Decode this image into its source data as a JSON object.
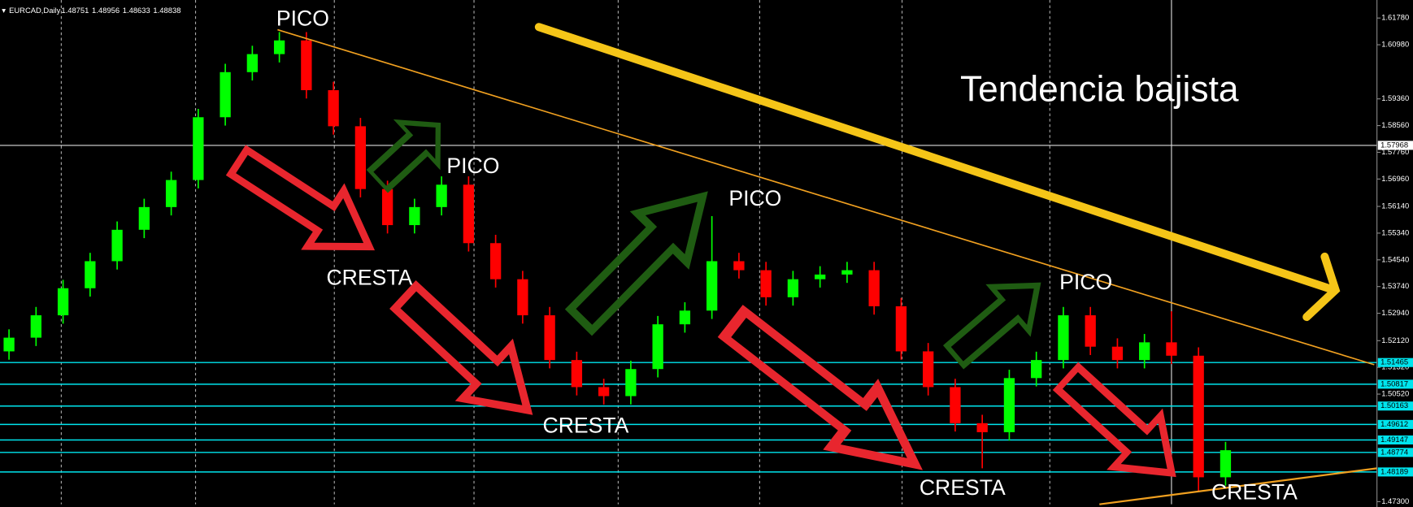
{
  "chart_data": {
    "type": "candlestick",
    "symbol": "EURCAD,Daily",
    "header_values": [
      1.48751,
      1.48956,
      1.48633,
      1.48838
    ],
    "title": "Tendencia bajista",
    "peak_labels": [
      "PICO",
      "PICO",
      "PICO",
      "PICO"
    ],
    "trough_labels": [
      "CRESTA",
      "CRESTA",
      "CRESTA",
      "CRESTA"
    ],
    "up_color": "#00ff00",
    "down_color": "#ff0000",
    "open": [
      1.518,
      1.5221,
      1.5288,
      1.5369,
      1.545,
      1.5544,
      1.5612,
      1.5693,
      1.5881,
      1.6016,
      1.607,
      1.6111,
      1.5962,
      1.5854,
      1.5666,
      1.5558,
      1.5612,
      1.5679,
      1.5504,
      1.5396,
      1.5288,
      1.5154,
      1.5073,
      1.5046,
      1.5127,
      1.5261,
      1.5302,
      1.545,
      1.5423,
      1.5342,
      1.5396,
      1.541,
      1.5423,
      1.5315,
      1.518,
      1.5073,
      1.4965,
      1.4938,
      1.51,
      1.5154,
      1.5288,
      1.5194,
      1.5154,
      1.5207,
      1.5167,
      1.4803
    ],
    "high": [
      1.5246,
      1.5313,
      1.5394,
      1.5475,
      1.5569,
      1.5637,
      1.5718,
      1.5906,
      1.6041,
      1.6095,
      1.6136,
      1.6136,
      1.5987,
      1.5879,
      1.5691,
      1.5637,
      1.5704,
      1.5704,
      1.5529,
      1.5421,
      1.5313,
      1.5179,
      1.5098,
      1.5152,
      1.5286,
      1.5327,
      1.5585,
      1.5475,
      1.5448,
      1.5421,
      1.5435,
      1.5448,
      1.5448,
      1.534,
      1.5205,
      1.5098,
      1.499,
      1.5125,
      1.5179,
      1.5313,
      1.5313,
      1.5219,
      1.5232,
      1.53,
      1.5192,
      1.4909
    ],
    "low": [
      1.5155,
      1.5196,
      1.5263,
      1.5344,
      1.5425,
      1.5519,
      1.5587,
      1.5668,
      1.5856,
      1.5991,
      1.6045,
      1.5937,
      1.5829,
      1.5641,
      1.5533,
      1.5533,
      1.5587,
      1.5479,
      1.5371,
      1.5263,
      1.5129,
      1.5048,
      1.5021,
      1.5021,
      1.5102,
      1.5236,
      1.5277,
      1.5398,
      1.5317,
      1.5317,
      1.5371,
      1.5385,
      1.529,
      1.5155,
      1.5048,
      1.494,
      1.483,
      1.4913,
      1.5075,
      1.5129,
      1.5169,
      1.5129,
      1.5129,
      1.5142,
      1.476,
      1.4778
    ],
    "close": [
      1.5221,
      1.5288,
      1.5369,
      1.545,
      1.5544,
      1.5612,
      1.5693,
      1.5881,
      1.6016,
      1.607,
      1.6111,
      1.5962,
      1.5854,
      1.5666,
      1.5558,
      1.5612,
      1.5679,
      1.5504,
      1.5396,
      1.5288,
      1.5154,
      1.5073,
      1.5046,
      1.5127,
      1.5261,
      1.5302,
      1.545,
      1.5423,
      1.5342,
      1.5396,
      1.541,
      1.5423,
      1.5315,
      1.518,
      1.5073,
      1.4965,
      1.4938,
      1.51,
      1.5154,
      1.5288,
      1.5194,
      1.5154,
      1.5207,
      1.5167,
      1.4803,
      1.4884
    ],
    "ylim": [
      1.4714,
      1.6232
    ],
    "yticks": [
      {
        "value": 1.6178,
        "label": "1.61780"
      },
      {
        "value": 1.6098,
        "label": "1.60980"
      },
      {
        "value": 1.5936,
        "label": "1.59360"
      },
      {
        "value": 1.5856,
        "label": "1.58560"
      },
      {
        "value": 1.5776,
        "label": "1.57760"
      },
      {
        "value": 1.5696,
        "label": "1.56960"
      },
      {
        "value": 1.5614,
        "label": "1.56140"
      },
      {
        "value": 1.5534,
        "label": "1.55340"
      },
      {
        "value": 1.5454,
        "label": "1.54540"
      },
      {
        "value": 1.5374,
        "label": "1.53740"
      },
      {
        "value": 1.5294,
        "label": "1.52940"
      },
      {
        "value": 1.5212,
        "label": "1.52120"
      },
      {
        "value": 1.5132,
        "label": "1.51320"
      },
      {
        "value": 1.5052,
        "label": "1.50520"
      },
      {
        "value": 1.473,
        "label": "1.47300"
      }
    ],
    "levels": [
      1.51465,
      1.50817,
      1.50163,
      1.49612,
      1.49147,
      1.48774,
      1.48189
    ],
    "level_color": "#00e5ee",
    "crosshair": 1.57968
  }
}
